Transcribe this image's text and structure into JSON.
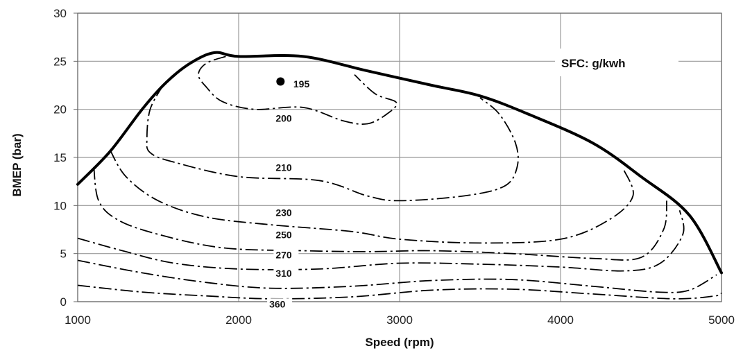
{
  "chart_data": {
    "type": "line",
    "title": "",
    "xlabel": "Speed (rpm)",
    "ylabel": "BMEP (bar)",
    "xlim": [
      1000,
      5000
    ],
    "ylim": [
      0,
      30
    ],
    "xticks": [
      "1000",
      "2000",
      "3000",
      "4000",
      "5000"
    ],
    "yticks": [
      "0",
      "5",
      "10",
      "15",
      "20",
      "25",
      "30"
    ],
    "grid": true,
    "legend": "SFC: g/kwh",
    "series": [
      {
        "style": "solid-bold",
        "values": [
          [
            1000,
            12.2
          ],
          [
            1200,
            15.6
          ],
          [
            1400,
            20.0
          ],
          [
            1550,
            22.8
          ],
          [
            1700,
            24.8
          ],
          [
            1850,
            25.9
          ],
          [
            2000,
            25.5
          ],
          [
            2400,
            25.5
          ],
          [
            2800,
            24.0
          ],
          [
            3200,
            22.5
          ],
          [
            3500,
            21.4
          ],
          [
            3800,
            19.5
          ],
          [
            4200,
            16.5
          ],
          [
            4500,
            13.0
          ],
          [
            4800,
            9.0
          ],
          [
            5000,
            3.0
          ]
        ]
      },
      {
        "name": "195",
        "style": "point",
        "values": [
          [
            2260,
            22.9
          ]
        ]
      },
      {
        "name": "200",
        "style": "dash-dot",
        "values": [
          [
            1920,
            25.5
          ],
          [
            1800,
            24.8
          ],
          [
            1750,
            23.6
          ],
          [
            1800,
            22.3
          ],
          [
            1900,
            20.8
          ],
          [
            2100,
            20.0
          ],
          [
            2400,
            20.2
          ],
          [
            2650,
            18.8
          ],
          [
            2800,
            18.5
          ],
          [
            2920,
            19.5
          ],
          [
            2980,
            20.7
          ],
          [
            2850,
            21.6
          ],
          [
            2720,
            23.6
          ]
        ]
      },
      {
        "name": "210",
        "style": "dash-dot",
        "values": [
          [
            1530,
            22.5
          ],
          [
            1450,
            20.0
          ],
          [
            1430,
            17.0
          ],
          [
            1450,
            15.5
          ],
          [
            1600,
            14.5
          ],
          [
            2000,
            13.0
          ],
          [
            2500,
            12.6
          ],
          [
            2800,
            11.0
          ],
          [
            3000,
            10.5
          ],
          [
            3400,
            11.0
          ],
          [
            3650,
            12.0
          ],
          [
            3730,
            14.0
          ],
          [
            3720,
            16.5
          ],
          [
            3620,
            19.5
          ],
          [
            3500,
            21.2
          ]
        ]
      },
      {
        "name": "230",
        "style": "dash-dot",
        "values": [
          [
            1200,
            15.8
          ],
          [
            1300,
            13.0
          ],
          [
            1500,
            10.5
          ],
          [
            1800,
            8.8
          ],
          [
            2200,
            8.0
          ],
          [
            2700,
            7.3
          ],
          [
            3000,
            6.5
          ],
          [
            3500,
            6.1
          ],
          [
            4000,
            6.5
          ],
          [
            4300,
            8.5
          ],
          [
            4450,
            11.0
          ],
          [
            4390,
            13.8
          ]
        ]
      },
      {
        "name": "250",
        "style": "dash-dot",
        "values": [
          [
            1100,
            14.0
          ],
          [
            1130,
            10.5
          ],
          [
            1250,
            8.5
          ],
          [
            1500,
            7.0
          ],
          [
            1900,
            5.6
          ],
          [
            2400,
            5.3
          ],
          [
            2800,
            5.2
          ],
          [
            3200,
            5.3
          ],
          [
            3700,
            5.0
          ],
          [
            4200,
            4.5
          ],
          [
            4500,
            4.6
          ],
          [
            4640,
            7.5
          ],
          [
            4660,
            10.5
          ]
        ]
      },
      {
        "name": "270",
        "style": "dash-dot",
        "values": [
          [
            1000,
            6.6
          ],
          [
            1300,
            5.2
          ],
          [
            1600,
            4.0
          ],
          [
            2000,
            3.4
          ],
          [
            2500,
            3.4
          ],
          [
            3000,
            4.0
          ],
          [
            3500,
            3.9
          ],
          [
            4000,
            3.6
          ],
          [
            4400,
            3.2
          ],
          [
            4620,
            4.0
          ],
          [
            4760,
            7.0
          ],
          [
            4740,
            9.5
          ]
        ]
      },
      {
        "name": "310",
        "style": "dash-dot",
        "values": [
          [
            1000,
            4.3
          ],
          [
            1400,
            3.0
          ],
          [
            1800,
            2.0
          ],
          [
            2200,
            1.4
          ],
          [
            2700,
            1.6
          ],
          [
            3200,
            2.2
          ],
          [
            3700,
            2.3
          ],
          [
            4200,
            1.6
          ],
          [
            4600,
            1.0
          ],
          [
            4800,
            1.2
          ],
          [
            4970,
            2.8
          ]
        ]
      },
      {
        "name": "360",
        "style": "dash-dot",
        "values": [
          [
            1000,
            1.7
          ],
          [
            1400,
            1.0
          ],
          [
            1800,
            0.6
          ],
          [
            2200,
            0.3
          ],
          [
            2700,
            0.5
          ],
          [
            3200,
            1.2
          ],
          [
            3700,
            1.3
          ],
          [
            4200,
            0.8
          ],
          [
            4700,
            0.3
          ],
          [
            4960,
            0.6
          ],
          [
            5000,
            0.9
          ]
        ]
      }
    ],
    "labels": [
      {
        "text": "195",
        "x": 2340,
        "y": 22.3
      },
      {
        "text": "200",
        "x": 2230,
        "y": 18.7
      },
      {
        "text": "210",
        "x": 2230,
        "y": 13.6
      },
      {
        "text": "230",
        "x": 2230,
        "y": 8.9
      },
      {
        "text": "250",
        "x": 2230,
        "y": 6.6
      },
      {
        "text": "270",
        "x": 2230,
        "y": 4.5
      },
      {
        "text": "310",
        "x": 2230,
        "y": 2.6
      },
      {
        "text": "360",
        "x": 2190,
        "y": -0.6
      }
    ]
  }
}
